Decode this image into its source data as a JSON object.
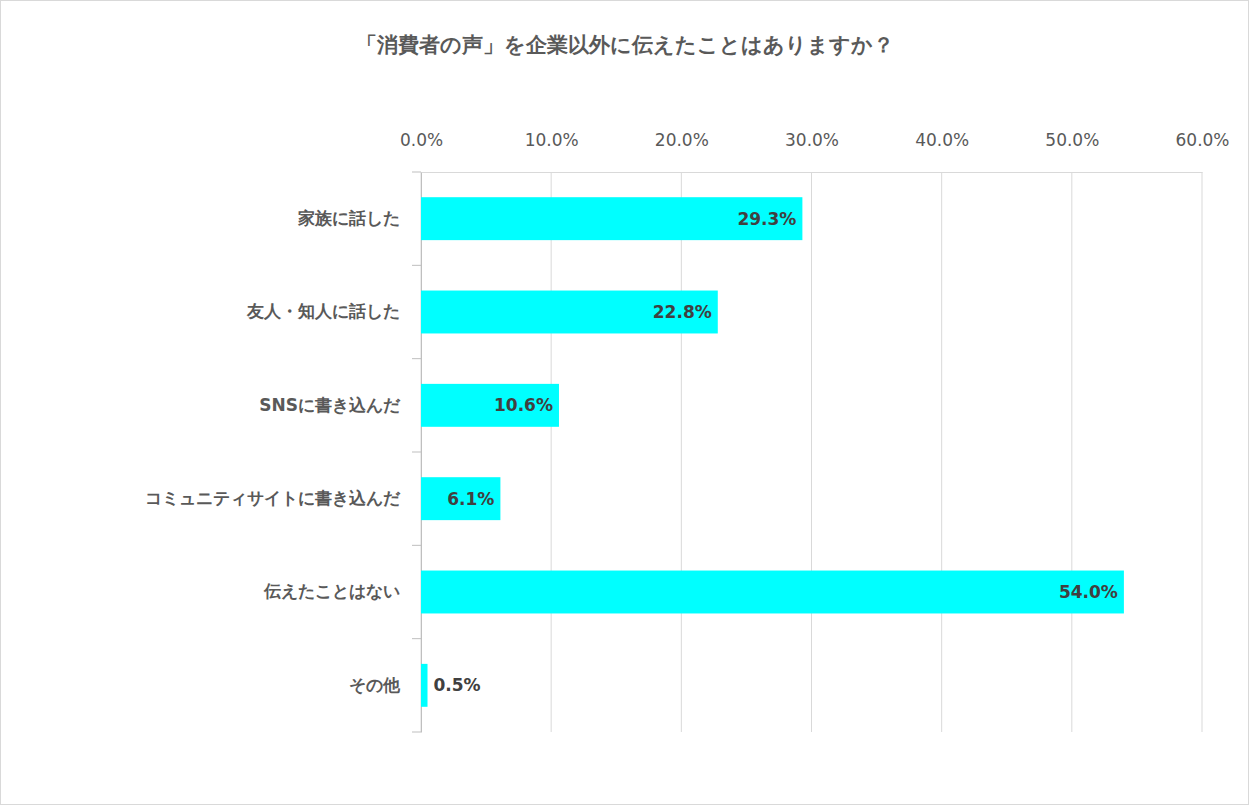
{
  "chart_data": {
    "type": "bar",
    "orientation": "horizontal",
    "title": "「消費者の声」を企業以外に伝えたことはありますか？",
    "categories": [
      "家族に話した",
      "友人・知人に話した",
      "SNSに書き込んだ",
      "コミュニティサイトに書き込んだ",
      "伝えたことはない",
      "その他"
    ],
    "values": [
      29.3,
      22.8,
      10.6,
      6.1,
      54.0,
      0.5
    ],
    "value_labels": [
      "29.3%",
      "22.8%",
      "10.6%",
      "6.1%",
      "54.0%",
      "0.5%"
    ],
    "color": "#00ffff",
    "xlim": [
      0,
      60
    ],
    "xticks": [
      {
        "value": 0,
        "label": "0.0%"
      },
      {
        "value": 10,
        "label": "10.0%"
      },
      {
        "value": 20,
        "label": "20.0%"
      },
      {
        "value": 30,
        "label": "30.0%"
      },
      {
        "value": 40,
        "label": "40.0%"
      },
      {
        "value": 50,
        "label": "50.0%"
      },
      {
        "value": 60,
        "label": "60.0%"
      }
    ],
    "grid": true,
    "data_labels": true
  }
}
